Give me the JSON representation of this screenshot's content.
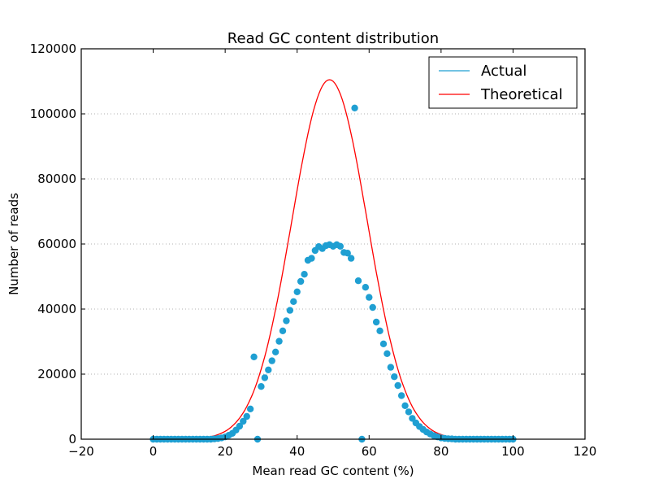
{
  "chart_data": {
    "type": "scatter",
    "title": "Read GC content distribution",
    "xlabel": "Mean read GC content (%)",
    "ylabel": "Number of reads",
    "xlim": [
      -20,
      120
    ],
    "ylim": [
      0,
      120000
    ],
    "xticks": [
      "−20",
      "0",
      "20",
      "40",
      "60",
      "80",
      "100",
      "120"
    ],
    "xtick_values": [
      -20,
      0,
      20,
      40,
      60,
      80,
      100,
      120
    ],
    "yticks": [
      "0",
      "20000",
      "40000",
      "60000",
      "80000",
      "100000",
      "120000"
    ],
    "ytick_values": [
      0,
      20000,
      40000,
      60000,
      80000,
      100000,
      120000
    ],
    "grid": "horizontal dotted",
    "legend": "top-right",
    "series": [
      {
        "name": "Actual",
        "kind": "scatter",
        "color": "#1f9fd2",
        "x_start": 0,
        "x_step": 1,
        "values": [
          0,
          0,
          0,
          0,
          0,
          0,
          0,
          0,
          0,
          0,
          0,
          0,
          0,
          0,
          0,
          0,
          0,
          100,
          200,
          400,
          700,
          1200,
          1800,
          2800,
          4000,
          5500,
          7000,
          9300,
          25300,
          0,
          16200,
          18900,
          21300,
          24100,
          26800,
          30100,
          33300,
          36400,
          39600,
          42300,
          45300,
          48500,
          50700,
          55000,
          55600,
          58000,
          59200,
          58600,
          59500,
          59800,
          59300,
          59800,
          59300,
          57400,
          57200,
          55600,
          101800,
          48700,
          0,
          46700,
          43600,
          40500,
          36000,
          33300,
          29300,
          26300,
          22100,
          19200,
          16500,
          13400,
          10300,
          8400,
          6400,
          5000,
          3900,
          3000,
          2200,
          1600,
          1100,
          700,
          400,
          250,
          150,
          100,
          0,
          0,
          0,
          0,
          0,
          0,
          0,
          0,
          0,
          0,
          0,
          0,
          0,
          0,
          0,
          0,
          0
        ]
      },
      {
        "name": "Theoretical",
        "kind": "line",
        "color": "#ff0000",
        "distribution": "normal",
        "mean": 49,
        "sd": 10.5,
        "peak": 110500,
        "x_range": [
          0,
          100
        ]
      }
    ]
  }
}
